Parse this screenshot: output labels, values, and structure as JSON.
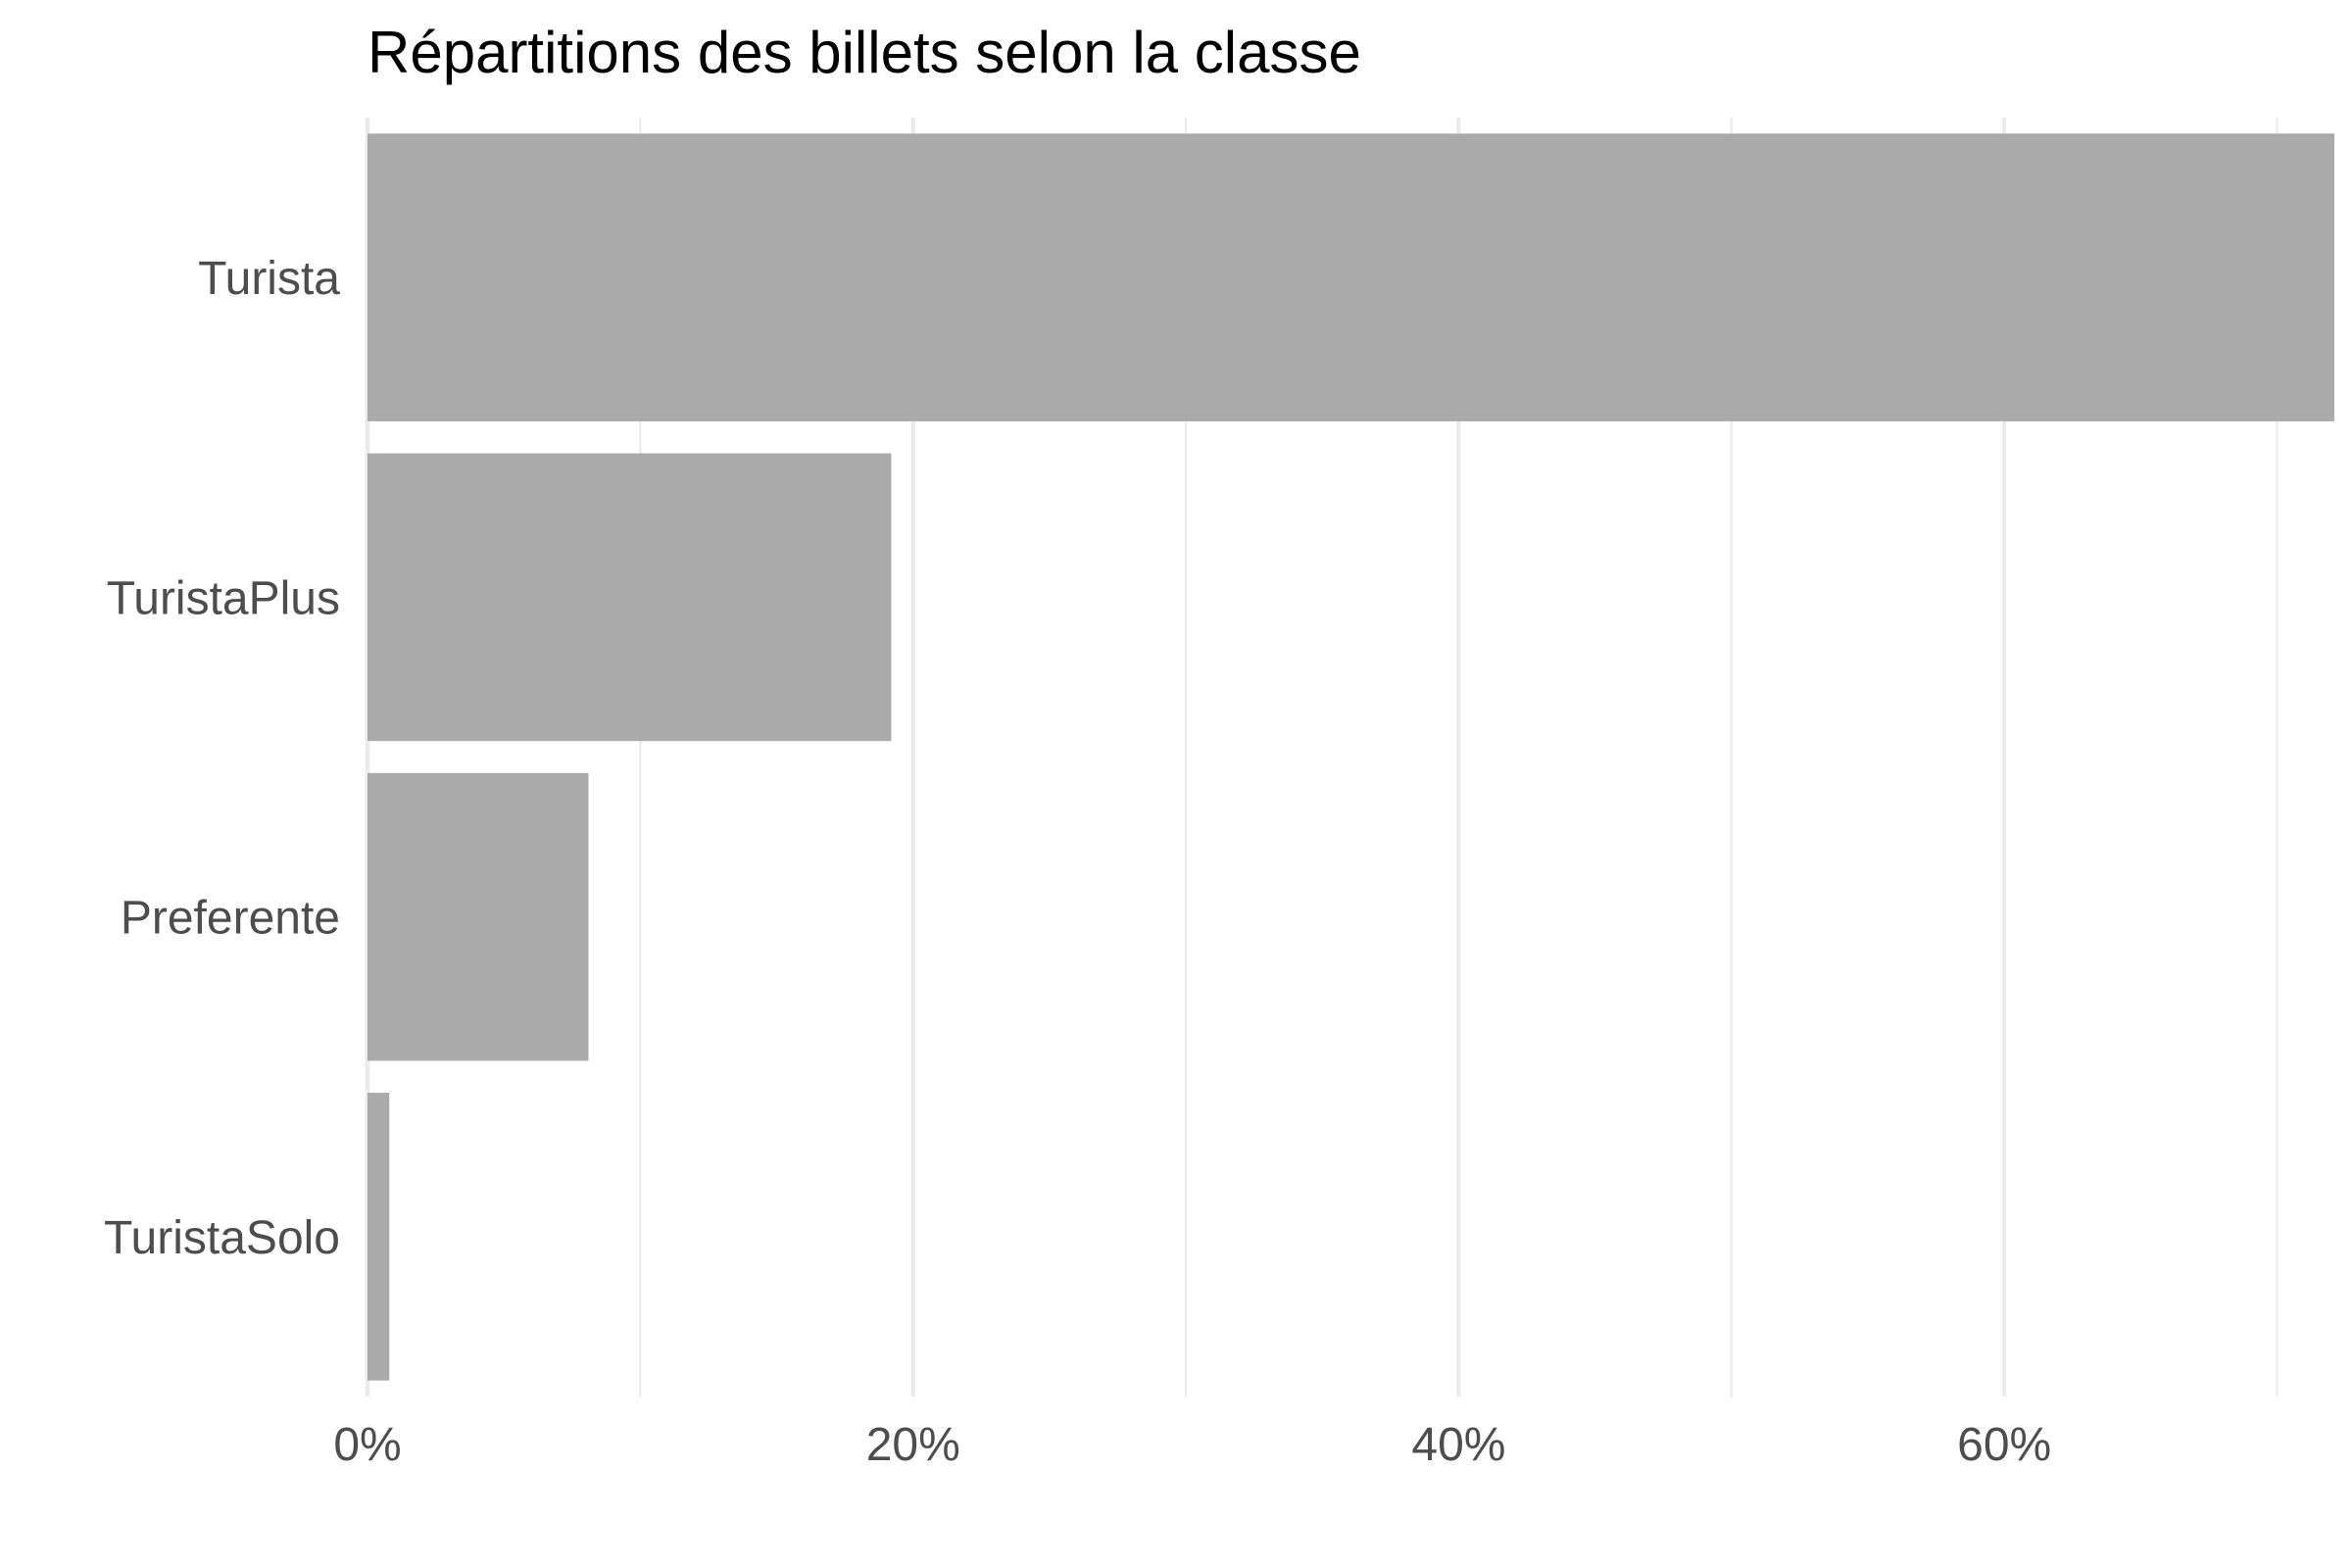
{
  "chart_data": {
    "type": "bar",
    "orientation": "horizontal",
    "title": "Répartitions des billets selon la classe",
    "xlabel": "",
    "ylabel": "",
    "categories": [
      "Turista",
      "TuristaPlus",
      "Preferente",
      "TuristaSolo"
    ],
    "values": [
      72.1,
      19.2,
      8.1,
      0.8
    ],
    "value_unit": "%",
    "xlim": [
      0,
      72.1
    ],
    "x_ticks": [
      0,
      20,
      40,
      60
    ],
    "x_tick_labels": [
      "0%",
      "20%",
      "40%",
      "60%"
    ],
    "minor_gridlines": [
      10,
      30,
      50,
      70
    ],
    "grid": true,
    "legend": "none",
    "colors": {
      "bar": "#aaaaaa",
      "grid": "#ebebeb",
      "title": "#000000",
      "labels": "#4d4d4d"
    }
  }
}
